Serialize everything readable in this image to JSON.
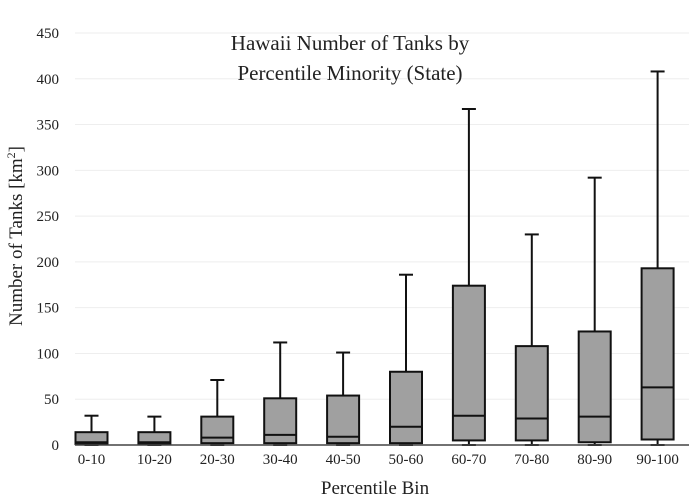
{
  "chart_data": {
    "type": "box",
    "title_lines": [
      "Hawaii Number of Tanks by",
      "Percentile Minority (State)"
    ],
    "xlabel": "Percentile Bin",
    "ylabel": "Number of Tanks  [km",
    "ylabel_sup": "2",
    "ylabel_close": "]",
    "ylim": [
      0,
      450
    ],
    "yticks": [
      0,
      50,
      100,
      150,
      200,
      250,
      300,
      350,
      400,
      450
    ],
    "grid": true,
    "categories": [
      "0-10",
      "10-20",
      "20-30",
      "30-40",
      "40-50",
      "50-60",
      "60-70",
      "70-80",
      "80-90",
      "90-100"
    ],
    "boxes": [
      {
        "min": 0,
        "q1": 1,
        "median": 3,
        "q3": 14,
        "max": 32
      },
      {
        "min": 0,
        "q1": 1,
        "median": 3,
        "q3": 14,
        "max": 31
      },
      {
        "min": 0,
        "q1": 2,
        "median": 8,
        "q3": 31,
        "max": 71
      },
      {
        "min": 0,
        "q1": 2,
        "median": 11,
        "q3": 51,
        "max": 112
      },
      {
        "min": 0,
        "q1": 2,
        "median": 9,
        "q3": 54,
        "max": 101
      },
      {
        "min": 0,
        "q1": 2,
        "median": 20,
        "q3": 80,
        "max": 186
      },
      {
        "min": 0,
        "q1": 5,
        "median": 32,
        "q3": 174,
        "max": 367
      },
      {
        "min": 0,
        "q1": 5,
        "median": 29,
        "q3": 108,
        "max": 230
      },
      {
        "min": 0,
        "q1": 3,
        "median": 31,
        "q3": 124,
        "max": 292
      },
      {
        "min": 0,
        "q1": 6,
        "median": 63,
        "q3": 193,
        "max": 408
      }
    ],
    "box_color": "#a0a0a0",
    "line_color": "#111111"
  }
}
